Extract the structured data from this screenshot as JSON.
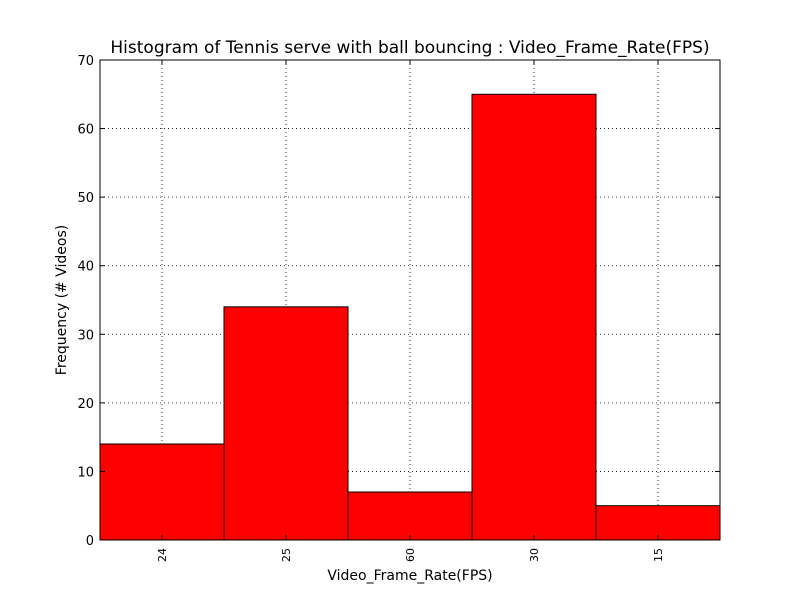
{
  "chart_data": {
    "type": "bar",
    "title": "Histogram of Tennis serve with ball bouncing : Video_Frame_Rate(FPS)",
    "xlabel": "Video_Frame_Rate(FPS)",
    "ylabel": "Frequency (# Videos)",
    "categories": [
      "24",
      "25",
      "60",
      "30",
      "15"
    ],
    "values": [
      14,
      34,
      7,
      65,
      5
    ],
    "ylim": [
      0,
      70
    ],
    "yticks": [
      "0",
      "10",
      "20",
      "30",
      "40",
      "50",
      "60",
      "70"
    ],
    "grid": true,
    "legend": "none",
    "colors": {
      "bar_fill": "#ff0000",
      "bar_edge": "#000000",
      "grid": "#000000",
      "background": "#ffffff"
    }
  }
}
